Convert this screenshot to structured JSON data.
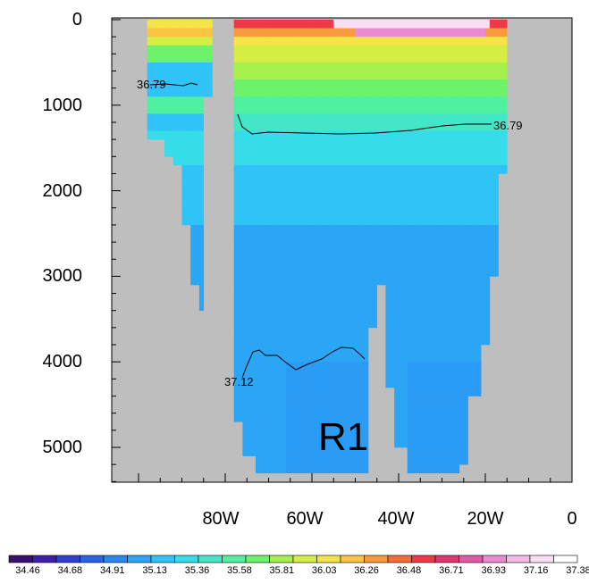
{
  "chart_data": {
    "type": "heatmap",
    "title": "",
    "xlabel": "",
    "ylabel": "",
    "x_axis": {
      "ticks": [
        -80,
        -60,
        -40,
        -20,
        0
      ],
      "tick_labels": [
        "80W",
        "60W",
        "40W",
        "20W",
        "0"
      ]
    },
    "y_axis": {
      "inverted": true,
      "ticks": [
        0,
        1000,
        2000,
        3000,
        4000,
        5000
      ],
      "tick_labels": [
        "0",
        "1000",
        "2000",
        "3000",
        "4000",
        "5000"
      ]
    },
    "colorbar": {
      "labels": [
        "34.46",
        "34.68",
        "34.91",
        "35.13",
        "35.36",
        "35.58",
        "35.81",
        "36.03",
        "36.26",
        "36.48",
        "36.71",
        "36.93",
        "37.16",
        "37.38"
      ],
      "colors": [
        "#3a0f6e",
        "#3d1fa8",
        "#2f3fd1",
        "#2b62e6",
        "#2b86f0",
        "#2aa6f5",
        "#2fc3f7",
        "#36dcea",
        "#43e7c7",
        "#4ff0a0",
        "#6cf36b",
        "#a6f04c",
        "#d6ee44",
        "#f4e448",
        "#fbc442",
        "#f99a3d",
        "#f56c3b",
        "#ee3a46",
        "#e2366f",
        "#e05aa7",
        "#e88bd0",
        "#f2b8e6",
        "#fadff4",
        "#ffffff"
      ]
    },
    "contours": [
      {
        "label": "36.79"
      },
      {
        "label": "36.79"
      },
      {
        "label": "37.12"
      }
    ],
    "region_label": "R1",
    "land_color": "#bebebe"
  }
}
